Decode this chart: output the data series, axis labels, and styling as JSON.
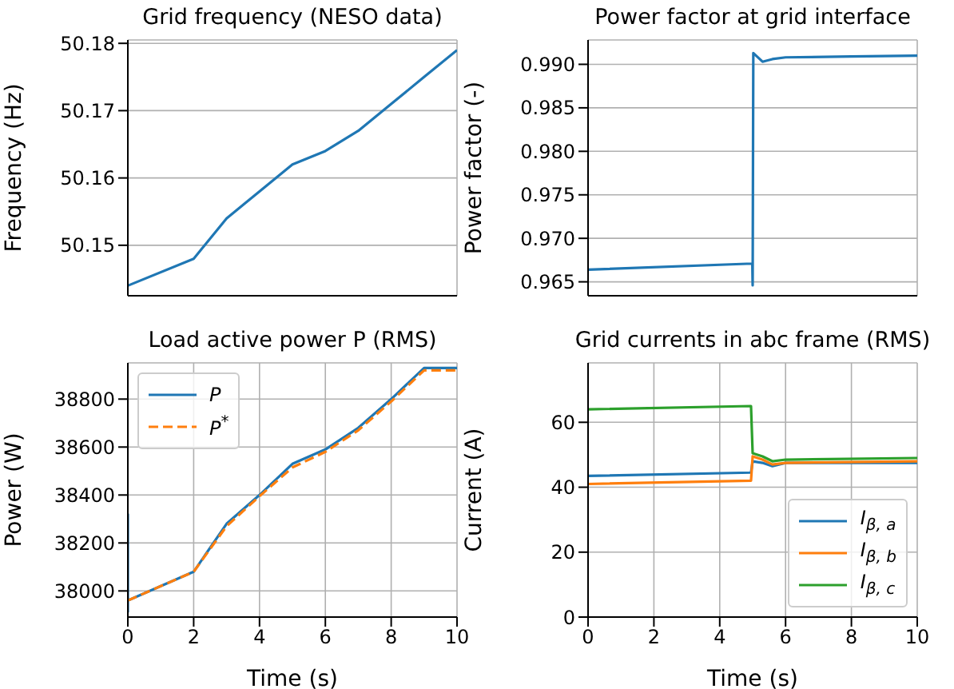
{
  "chart_data": [
    {
      "type": "line",
      "title": "Grid frequency (NESO data)",
      "ylabel": "Frequency (Hz)",
      "xlim": [
        0,
        10
      ],
      "xticks": [
        0,
        2,
        4,
        6,
        8,
        10
      ],
      "ylim": [
        50.1425,
        50.1805
      ],
      "yticks": [
        50.15,
        50.16,
        50.17,
        50.18
      ],
      "tick_labels": "y",
      "grid": true,
      "marker": "none",
      "legend": false,
      "series": [
        {
          "color": "#1f77b4",
          "line_style": "solid",
          "x": [
            0,
            2,
            3,
            4,
            5,
            6,
            7,
            8,
            9,
            10
          ],
          "values": [
            50.144,
            50.148,
            50.154,
            50.158,
            50.162,
            50.164,
            50.167,
            50.171,
            50.175,
            50.179
          ]
        }
      ]
    },
    {
      "type": "line",
      "title": "Power factor at grid interface",
      "ylabel": "Power factor (-)",
      "xlim": [
        0,
        10
      ],
      "xticks": [
        0,
        2,
        4,
        6,
        8,
        10
      ],
      "ylim": [
        0.9634,
        0.9928
      ],
      "yticks": [
        0.965,
        {
          "value": 0.97,
          "label": "0.970"
        },
        0.975,
        {
          "value": 0.98,
          "label": "0.980"
        },
        0.985,
        {
          "value": 0.99,
          "label": "0.990"
        }
      ],
      "tick_labels": "y",
      "grid": true,
      "marker": "none",
      "legend": false,
      "series": [
        {
          "color": "#1f77b4",
          "line_style": "solid",
          "x": [
            0,
            4.99,
            5,
            5.02,
            5.3,
            5.6,
            6,
            8,
            10
          ],
          "values": [
            0.9664,
            0.9671,
            0.9646,
            0.9913,
            0.9903,
            0.9906,
            0.9908,
            0.9909,
            0.991
          ]
        }
      ]
    },
    {
      "type": "line",
      "title": "Load active power P (RMS)",
      "xlabel": "Time (s)",
      "ylabel": "Power (W)",
      "xlim": [
        0,
        10
      ],
      "xticks": [
        0,
        2,
        4,
        6,
        8,
        10
      ],
      "ylim": [
        37891,
        38951
      ],
      "yticks": [
        38000,
        38200,
        38400,
        38600,
        38800
      ],
      "grid": true,
      "marker": "none",
      "legend": "top left",
      "series": [
        {
          "name": "P",
          "color": "#1f77b4",
          "line_style": "solid",
          "x": [
            0,
            0,
            0,
            2,
            3,
            4,
            5,
            6,
            7,
            8,
            9,
            10
          ],
          "values": [
            37910,
            38320,
            37960,
            38080,
            38280,
            38400,
            38530,
            38590,
            38680,
            38800,
            38930,
            38930
          ]
        },
        {
          "name": "P$^{*}$",
          "color": "#ff7f0e",
          "line_style": "dashed",
          "x": [
            0,
            2,
            3,
            4,
            5,
            6,
            7,
            8,
            9,
            10
          ],
          "values": [
            37960,
            38080,
            38270,
            38395,
            38515,
            38580,
            38670,
            38790,
            38920,
            38920
          ]
        }
      ]
    },
    {
      "type": "line",
      "title": "Grid currents in abc frame (RMS)",
      "xlabel": "Time (s)",
      "ylabel": "Current (A)",
      "xlim": [
        0,
        10
      ],
      "xticks": [
        0,
        2,
        4,
        6,
        8,
        10
      ],
      "ylim": [
        0,
        78.3
      ],
      "yticks": [
        0,
        20,
        40,
        60
      ],
      "grid": true,
      "marker": "none",
      "legend": "bottom right",
      "series": [
        {
          "name": "I$_{β, a}$",
          "color": "#1f77b4",
          "line_style": "solid",
          "x": [
            0,
            4.95,
            5,
            5.3,
            5.6,
            6,
            10
          ],
          "values": [
            43.5,
            44.5,
            48,
            47.5,
            46.5,
            47.5,
            47.5
          ]
        },
        {
          "name": "I$_{β, b}$",
          "color": "#ff7f0e",
          "line_style": "solid",
          "x": [
            0,
            4.95,
            5,
            5.3,
            5.6,
            6,
            10
          ],
          "values": [
            41,
            42,
            49.5,
            48.5,
            47,
            47.5,
            48
          ]
        },
        {
          "name": "I$_{β, c}$",
          "color": "#2ca02c",
          "line_style": "solid",
          "x": [
            0,
            4.95,
            5,
            5.3,
            5.6,
            6,
            10
          ],
          "values": [
            64,
            65,
            50.5,
            49.5,
            48,
            48.5,
            49
          ]
        }
      ]
    }
  ]
}
